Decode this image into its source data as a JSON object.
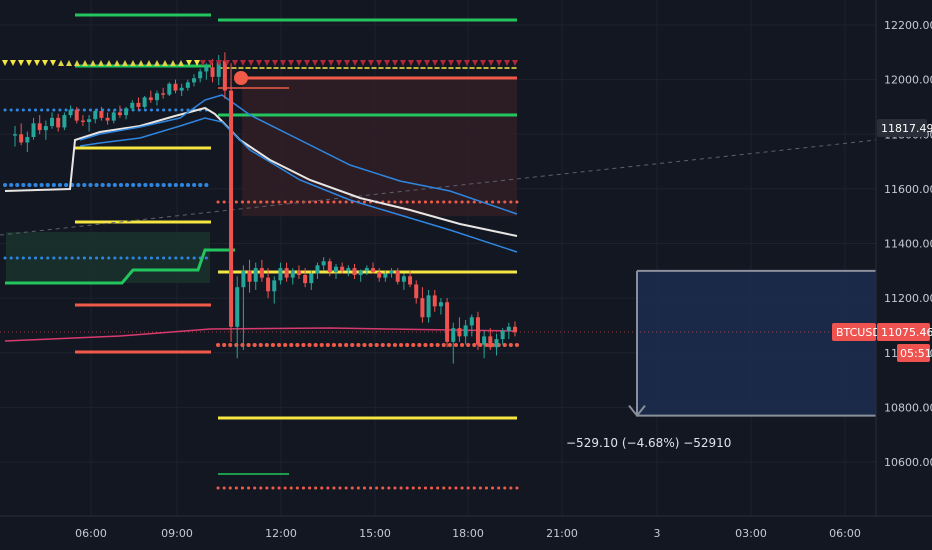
{
  "chart_data": {
    "type": "candlestick",
    "symbol": "BTCUSD",
    "last_price": "11075.46",
    "countdown": "05:51",
    "crosshair_price": "11817.49",
    "y_ticks": [
      "12200.00",
      "12000.00",
      "11800.00",
      "11600.00",
      "11400.00",
      "11200.00",
      "11000.00",
      "10800.00",
      "10600.00"
    ],
    "x_ticks": [
      "06:00",
      "09:00",
      "12:00",
      "15:00",
      "18:00",
      "21:00",
      "3",
      "03:00",
      "06:00"
    ],
    "ylim": [
      10500,
      12280
    ],
    "measure_label": "−529.10 (−4.68%) −52910",
    "measure_range": [
      10770,
      11300
    ],
    "trade_box": {
      "entry": 12010,
      "stop": 11500
    },
    "colors": {
      "background": "#131722",
      "up": "#26a69a",
      "down": "#ef5350",
      "green_level": "#22c55e",
      "yellow_level": "#f5e642",
      "red_level": "#f05a48",
      "blue_dots": "#2f86e0",
      "measure_fill": "#1c2b4d",
      "ema_white": "#e8e6e3",
      "ema_blue": "#2f86e0",
      "price_tag": "#ef5350"
    },
    "candles": [
      [
        11795,
        11830,
        11755,
        11800
      ],
      [
        11800,
        11840,
        11760,
        11770
      ],
      [
        11770,
        11810,
        11735,
        11790
      ],
      [
        11790,
        11860,
        11780,
        11840
      ],
      [
        11840,
        11870,
        11800,
        11815
      ],
      [
        11815,
        11850,
        11780,
        11830
      ],
      [
        11830,
        11880,
        11820,
        11860
      ],
      [
        11860,
        11875,
        11810,
        11825
      ],
      [
        11825,
        11880,
        11815,
        11870
      ],
      [
        11870,
        11905,
        11860,
        11890
      ],
      [
        11890,
        11900,
        11840,
        11850
      ],
      [
        11850,
        11870,
        11830,
        11845
      ],
      [
        11845,
        11870,
        11810,
        11855
      ],
      [
        11855,
        11890,
        11840,
        11885
      ],
      [
        11885,
        11900,
        11850,
        11860
      ],
      [
        11860,
        11880,
        11835,
        11850
      ],
      [
        11850,
        11890,
        11840,
        11880
      ],
      [
        11880,
        11905,
        11860,
        11870
      ],
      [
        11870,
        11900,
        11855,
        11895
      ],
      [
        11895,
        11925,
        11885,
        11915
      ],
      [
        11915,
        11935,
        11890,
        11900
      ],
      [
        11900,
        11940,
        11895,
        11935
      ],
      [
        11935,
        11960,
        11915,
        11925
      ],
      [
        11925,
        11960,
        11905,
        11950
      ],
      [
        11950,
        11970,
        11930,
        11945
      ],
      [
        11945,
        11990,
        11940,
        11985
      ],
      [
        11985,
        12000,
        11950,
        11960
      ],
      [
        11960,
        11985,
        11940,
        11970
      ],
      [
        11970,
        12000,
        11960,
        11990
      ],
      [
        11990,
        12020,
        11975,
        12005
      ],
      [
        12005,
        12040,
        11990,
        12030
      ],
      [
        12030,
        12060,
        12000,
        12045
      ],
      [
        12045,
        12075,
        11990,
        12010
      ],
      [
        12010,
        12090,
        11980,
        12070
      ],
      [
        12070,
        12100,
        11930,
        11960
      ],
      [
        11960,
        12060,
        11040,
        11095
      ],
      [
        11095,
        11280,
        10980,
        11240
      ],
      [
        11240,
        11320,
        11010,
        11300
      ],
      [
        11300,
        11340,
        11220,
        11260
      ],
      [
        11260,
        11330,
        11230,
        11310
      ],
      [
        11310,
        11340,
        11260,
        11275
      ],
      [
        11275,
        11310,
        11200,
        11225
      ],
      [
        11225,
        11280,
        11180,
        11265
      ],
      [
        11265,
        11330,
        11250,
        11310
      ],
      [
        11310,
        11330,
        11260,
        11275
      ],
      [
        11275,
        11310,
        11250,
        11300
      ],
      [
        11300,
        11320,
        11270,
        11285
      ],
      [
        11285,
        11310,
        11240,
        11255
      ],
      [
        11255,
        11300,
        11230,
        11290
      ],
      [
        11290,
        11330,
        11270,
        11320
      ],
      [
        11320,
        11350,
        11300,
        11335
      ],
      [
        11335,
        11345,
        11280,
        11295
      ],
      [
        11295,
        11325,
        11270,
        11315
      ],
      [
        11315,
        11330,
        11290,
        11300
      ],
      [
        11300,
        11320,
        11280,
        11310
      ],
      [
        11310,
        11325,
        11270,
        11285
      ],
      [
        11285,
        11305,
        11260,
        11300
      ],
      [
        11300,
        11320,
        11285,
        11310
      ],
      [
        11310,
        11330,
        11290,
        11295
      ],
      [
        11295,
        11310,
        11260,
        11275
      ],
      [
        11275,
        11300,
        11260,
        11290
      ],
      [
        11290,
        11310,
        11275,
        11300
      ],
      [
        11300,
        11310,
        11250,
        11260
      ],
      [
        11260,
        11290,
        11230,
        11280
      ],
      [
        11280,
        11300,
        11240,
        11250
      ],
      [
        11250,
        11265,
        11180,
        11200
      ],
      [
        11200,
        11240,
        11110,
        11130
      ],
      [
        11130,
        11230,
        11110,
        11210
      ],
      [
        11210,
        11230,
        11150,
        11170
      ],
      [
        11170,
        11200,
        11140,
        11185
      ],
      [
        11185,
        11200,
        11020,
        11040
      ],
      [
        11040,
        11110,
        10960,
        11090
      ],
      [
        11090,
        11130,
        11040,
        11060
      ],
      [
        11060,
        11120,
        11030,
        11100
      ],
      [
        11100,
        11140,
        11060,
        11130
      ],
      [
        11130,
        11150,
        11010,
        11030
      ],
      [
        11030,
        11080,
        10980,
        11060
      ],
      [
        11060,
        11090,
        11010,
        11020
      ],
      [
        11020,
        11070,
        10990,
        11050
      ],
      [
        11050,
        11090,
        11030,
        11080
      ],
      [
        11080,
        11110,
        11050,
        11095
      ],
      [
        11095,
        11115,
        11060,
        11075
      ]
    ]
  }
}
